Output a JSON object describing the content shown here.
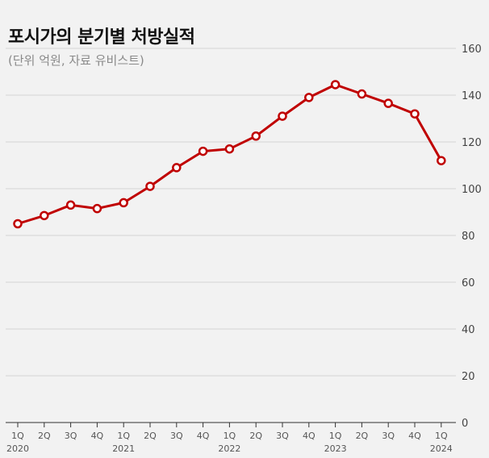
{
  "header": {
    "title": "포시가의 분기별 처방실적",
    "subtitle": "(단위 억원, 자료 유비스트)"
  },
  "chart_data": {
    "type": "line",
    "title": "포시가의 분기별 처방실적",
    "subtitle": "(단위 억원, 자료 유비스트)",
    "x": [
      "1Q",
      "2Q",
      "3Q",
      "4Q",
      "1Q",
      "2Q",
      "3Q",
      "4Q",
      "1Q",
      "2Q",
      "3Q",
      "4Q",
      "1Q",
      "2Q",
      "3Q",
      "4Q",
      "1Q"
    ],
    "year_labels": [
      "2020",
      "",
      "",
      "",
      "2021",
      "",
      "",
      "",
      "2022",
      "",
      "",
      "",
      "2023",
      "",
      "",
      "",
      "2024"
    ],
    "series": [
      {
        "values": [
          85,
          88.5,
          93,
          91.5,
          94,
          101,
          109,
          116,
          117,
          122.5,
          131,
          139,
          144.5,
          140.5,
          136.5,
          132,
          112
        ]
      }
    ],
    "ylim": [
      0,
      160
    ],
    "yticks": [
      0,
      20,
      40,
      60,
      80,
      100,
      120,
      140,
      160
    ],
    "y_axis_position": "right",
    "grid": true,
    "line_color": "#c00000"
  }
}
